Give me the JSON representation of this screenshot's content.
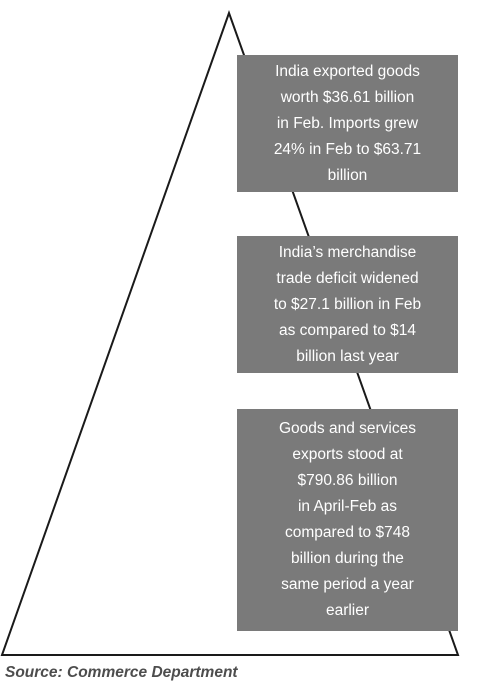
{
  "boxes": [
    {
      "lines": [
        "India exported goods",
        "worth $36.61 billion",
        "in Feb. Imports grew",
        "24% in Feb to $63.71",
        "billion"
      ]
    },
    {
      "lines": [
        "India’s merchandise",
        "trade deficit widened",
        "to $27.1 billion in Feb",
        "as compared to $14",
        "billion last year"
      ]
    },
    {
      "lines": [
        "Goods and services",
        "exports stood at",
        "$790.86 billion",
        "in April-Feb as",
        "compared to $748",
        "billion during the",
        "same period a year",
        "earlier"
      ]
    }
  ],
  "source": "Source: Commerce Department",
  "colors": {
    "box_fill": "#7a7a7a",
    "box_text": "#ffffff",
    "outline": "#1a1a1a",
    "source_text": "#4d4d4d"
  }
}
